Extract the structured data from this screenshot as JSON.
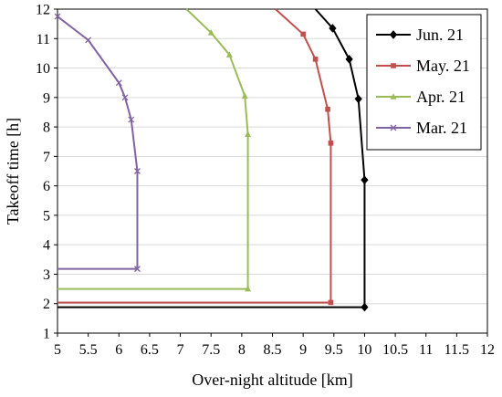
{
  "chart_data": {
    "type": "line",
    "xlabel": "Over-night altitude [km]",
    "ylabel": "Takeoff time [h]",
    "xlim": [
      5,
      12
    ],
    "ylim": [
      1,
      12
    ],
    "xticks": [
      5,
      5.5,
      6,
      6.5,
      7,
      7.5,
      8,
      8.5,
      9,
      9.5,
      10,
      10.5,
      11,
      11.5,
      12
    ],
    "yticks": [
      1,
      2,
      3,
      4,
      5,
      6,
      7,
      8,
      9,
      10,
      11,
      12
    ],
    "xtick_labels": [
      "5",
      "5.5",
      "6",
      "6.5",
      "7",
      "7.5",
      "8",
      "8.5",
      "9",
      "9.5",
      "10",
      "10.5",
      "11",
      "11.5",
      "12"
    ],
    "ytick_labels": [
      "1",
      "2",
      "3",
      "4",
      "5",
      "6",
      "7",
      "8",
      "9",
      "10",
      "11",
      "12"
    ],
    "grid": "horizontal",
    "legend_position": "top-right",
    "series": [
      {
        "name": "Jun. 21",
        "color": "#000000",
        "marker": "diamond",
        "points": [
          [
            5,
            1.88
          ],
          [
            10,
            1.88
          ],
          [
            10,
            6.2
          ],
          [
            9.9,
            8.95
          ],
          [
            9.75,
            10.3
          ],
          [
            9.48,
            11.35
          ],
          [
            9.2,
            12
          ]
        ],
        "marker_points": [
          [
            10,
            1.88
          ],
          [
            10,
            6.2
          ],
          [
            9.9,
            8.95
          ],
          [
            9.75,
            10.3
          ],
          [
            9.48,
            11.35
          ]
        ]
      },
      {
        "name": "May. 21",
        "color": "#c0504d",
        "marker": "square",
        "points": [
          [
            5,
            2.04
          ],
          [
            9.45,
            2.04
          ],
          [
            9.45,
            7.45
          ],
          [
            9.4,
            8.6
          ],
          [
            9.2,
            10.3
          ],
          [
            9.0,
            11.15
          ],
          [
            8.55,
            12
          ]
        ],
        "marker_points": [
          [
            9.45,
            2.04
          ],
          [
            9.45,
            7.45
          ],
          [
            9.4,
            8.6
          ],
          [
            9.2,
            10.3
          ],
          [
            9.0,
            11.15
          ]
        ]
      },
      {
        "name": "Apr. 21",
        "color": "#9bbb59",
        "marker": "triangle",
        "points": [
          [
            5,
            2.5
          ],
          [
            8.1,
            2.5
          ],
          [
            8.1,
            7.75
          ],
          [
            8.05,
            9.05
          ],
          [
            7.8,
            10.45
          ],
          [
            7.5,
            11.2
          ],
          [
            7.1,
            12
          ]
        ],
        "marker_points": [
          [
            8.1,
            2.5
          ],
          [
            8.1,
            7.75
          ],
          [
            8.05,
            9.05
          ],
          [
            7.8,
            10.45
          ],
          [
            7.5,
            11.2
          ]
        ]
      },
      {
        "name": "Mar. 21",
        "color": "#8064a2",
        "marker": "x",
        "points": [
          [
            5,
            3.18
          ],
          [
            6.3,
            3.18
          ],
          [
            6.3,
            6.5
          ],
          [
            6.2,
            8.25
          ],
          [
            6.1,
            9.0
          ],
          [
            6.0,
            9.5
          ],
          [
            5.5,
            10.95
          ],
          [
            5.0,
            11.75
          ]
        ],
        "marker_points": [
          [
            6.3,
            3.18
          ],
          [
            6.3,
            6.5
          ],
          [
            6.2,
            8.25
          ],
          [
            6.1,
            9.0
          ],
          [
            6.0,
            9.5
          ],
          [
            5.5,
            10.95
          ],
          [
            5.0,
            11.75
          ]
        ]
      }
    ]
  }
}
